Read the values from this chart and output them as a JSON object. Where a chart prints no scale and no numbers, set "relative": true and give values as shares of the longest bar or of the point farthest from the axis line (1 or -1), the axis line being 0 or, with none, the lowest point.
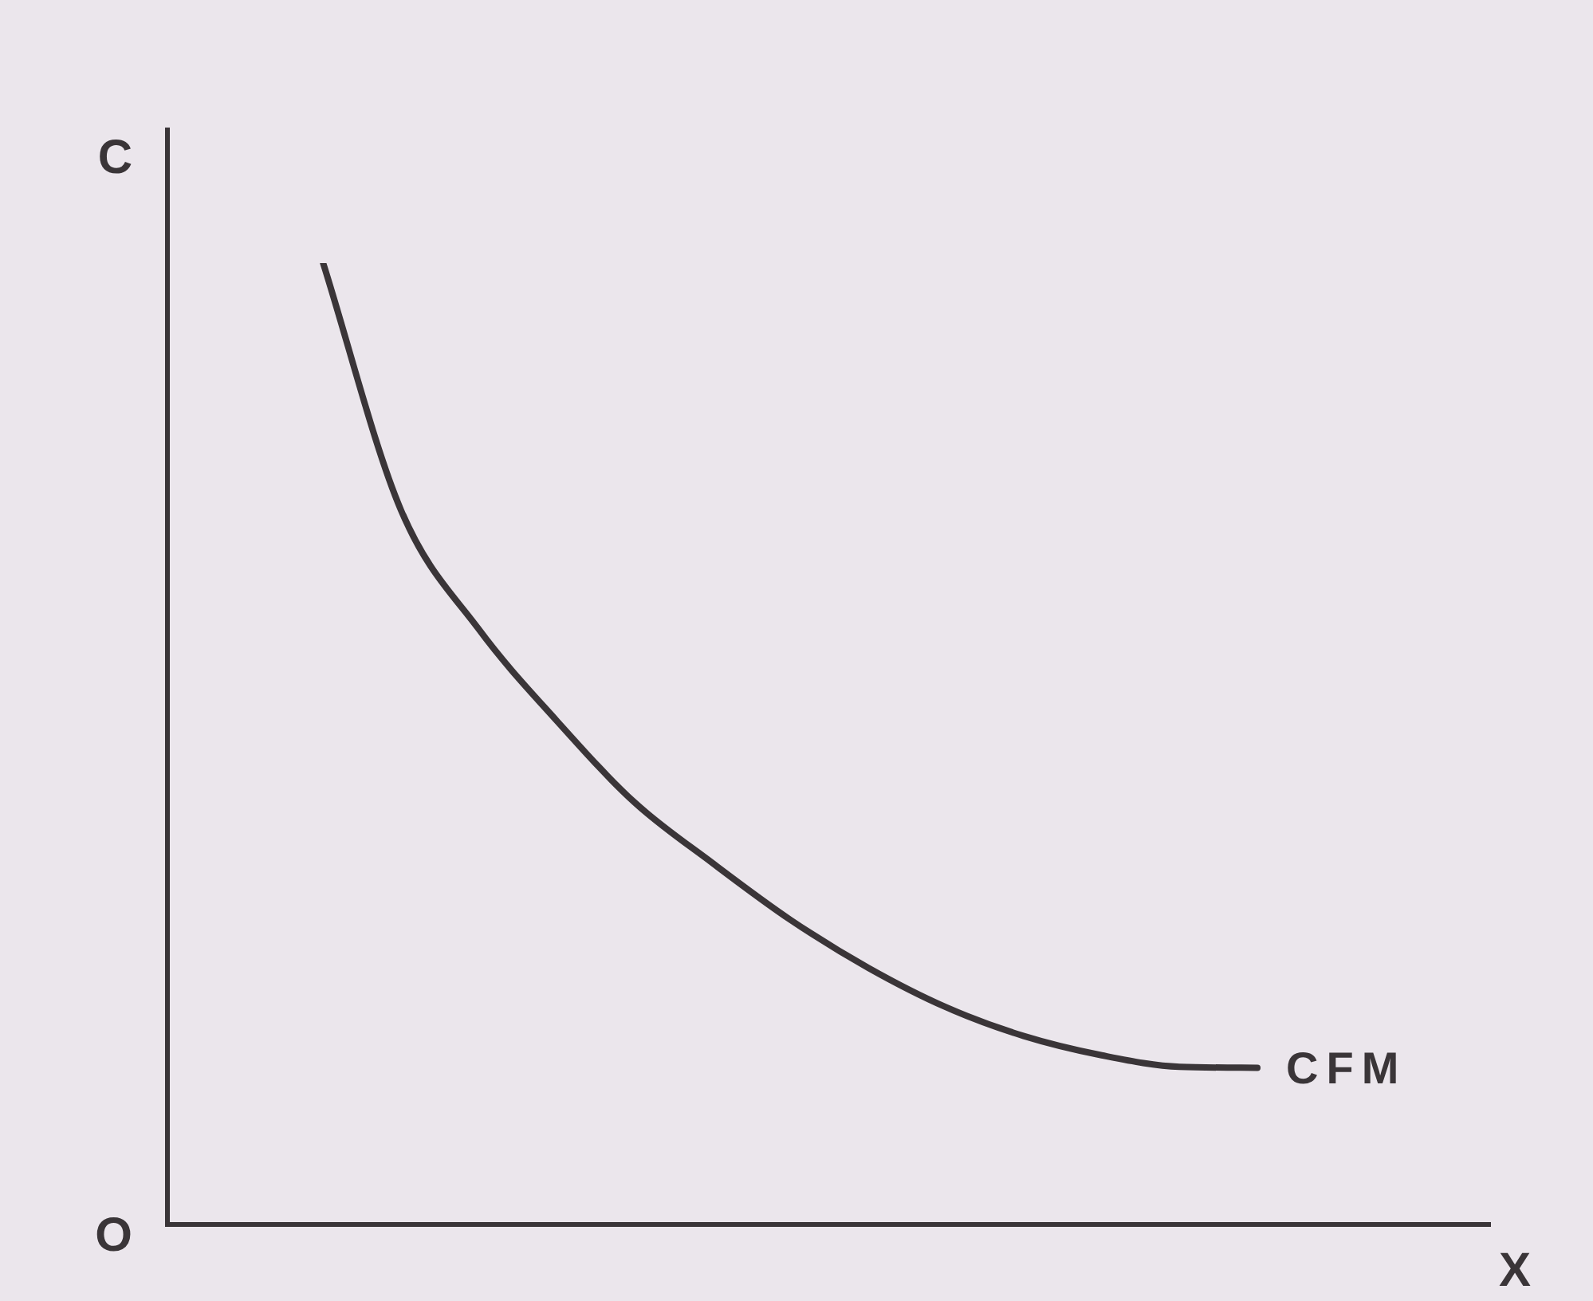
{
  "chart_data": {
    "type": "line",
    "relative": true,
    "xlabel": "X",
    "ylabel": "C",
    "annotations": [
      "O"
    ],
    "categories": [
      null,
      null,
      null,
      null,
      null,
      null,
      null,
      null,
      null,
      null,
      null,
      null,
      null,
      null,
      null,
      null,
      null,
      null
    ],
    "series": [
      {
        "name": "CFM",
        "color": "#3a3538",
        "values": [
          null,
          null,
          1,
          0.743,
          0.619,
          0.524,
          0.439,
          0.376,
          0.317,
          0.267,
          0.226,
          0.196,
          0.176,
          0.164,
          0.163,
          null,
          null,
          null
        ]
      }
    ]
  }
}
